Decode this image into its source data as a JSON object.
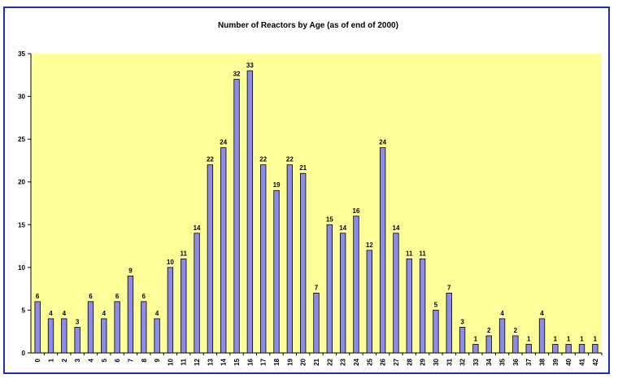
{
  "chart_data": {
    "type": "bar",
    "title": "Number of Reactors by Age (as of end of 2000)",
    "xlabel": "",
    "ylabel": "",
    "ylim": [
      0,
      35
    ],
    "yticks": [
      0,
      5,
      10,
      15,
      20,
      25,
      30,
      35
    ],
    "grid": false,
    "legend": "none",
    "categories": [
      "0",
      "1",
      "2",
      "3",
      "4",
      "5",
      "6",
      "7",
      "8",
      "9",
      "10",
      "11",
      "12",
      "13",
      "14",
      "15",
      "16",
      "17",
      "18",
      "19",
      "20",
      "21",
      "22",
      "23",
      "24",
      "25",
      "26",
      "27",
      "28",
      "29",
      "30",
      "31",
      "32",
      "33",
      "34",
      "35",
      "36",
      "37",
      "38",
      "39",
      "40",
      "41",
      "42"
    ],
    "values": [
      6,
      4,
      4,
      3,
      6,
      4,
      6,
      9,
      6,
      4,
      10,
      11,
      14,
      22,
      24,
      32,
      33,
      22,
      19,
      22,
      21,
      7,
      15,
      14,
      16,
      12,
      24,
      14,
      11,
      11,
      5,
      7,
      3,
      1,
      2,
      4,
      2,
      1,
      4,
      1,
      1,
      1,
      1
    ],
    "colors": {
      "bar_fill": "#8c8ce8",
      "bar_stroke": "#000000",
      "plot_bg": "#ffff99",
      "frame": "#1f2fb8"
    }
  }
}
